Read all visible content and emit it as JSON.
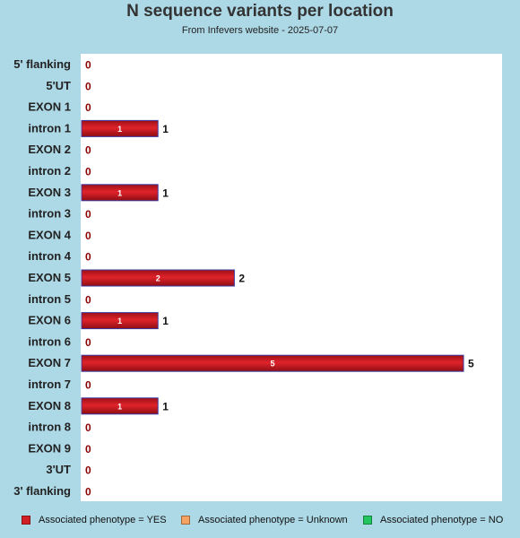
{
  "title": "N sequence variants per location",
  "subtitle": "From Infevers website - 2025-07-07",
  "colors": {
    "yes": "#d11f26",
    "unknown": "#f4a460",
    "no": "#22c55e",
    "zero_label": "#8b0000",
    "plot_bg": "#ffffff",
    "bar_border": "#3a3aa0"
  },
  "legend": [
    {
      "label": "Associated phenotype = YES",
      "color_key": "yes"
    },
    {
      "label": "Associated phenotype = Unknown",
      "color_key": "unknown"
    },
    {
      "label": "Associated phenotype = NO",
      "color_key": "no"
    }
  ],
  "chart_data": {
    "type": "bar",
    "orientation": "horizontal",
    "title": "N sequence variants per location",
    "subtitle": "From Infevers website - 2025-07-07",
    "categories": [
      "5' flanking",
      "5'UT",
      "EXON 1",
      "intron 1",
      "EXON 2",
      "intron 2",
      "EXON 3",
      "intron 3",
      "EXON 4",
      "intron 4",
      "EXON 5",
      "intron 5",
      "EXON 6",
      "intron 6",
      "EXON 7",
      "intron 7",
      "EXON 8",
      "intron 8",
      "EXON 9",
      "3'UT",
      "3' flanking"
    ],
    "series": [
      {
        "name": "Associated phenotype = YES",
        "values": [
          0,
          0,
          0,
          1,
          0,
          0,
          1,
          0,
          0,
          0,
          2,
          0,
          1,
          0,
          5,
          0,
          1,
          0,
          0,
          0,
          0
        ]
      },
      {
        "name": "Associated phenotype = Unknown",
        "values": [
          0,
          0,
          0,
          0,
          0,
          0,
          0,
          0,
          0,
          0,
          0,
          0,
          0,
          0,
          0,
          0,
          0,
          0,
          0,
          0,
          0
        ]
      },
      {
        "name": "Associated phenotype = NO",
        "values": [
          0,
          0,
          0,
          0,
          0,
          0,
          0,
          0,
          0,
          0,
          0,
          0,
          0,
          0,
          0,
          0,
          0,
          0,
          0,
          0,
          0
        ]
      }
    ],
    "totals": [
      0,
      0,
      0,
      1,
      0,
      0,
      1,
      0,
      0,
      0,
      2,
      0,
      1,
      0,
      5,
      0,
      1,
      0,
      0,
      0,
      0
    ],
    "xlim": [
      0,
      5.5
    ],
    "grid": false,
    "legend_position": "bottom"
  }
}
